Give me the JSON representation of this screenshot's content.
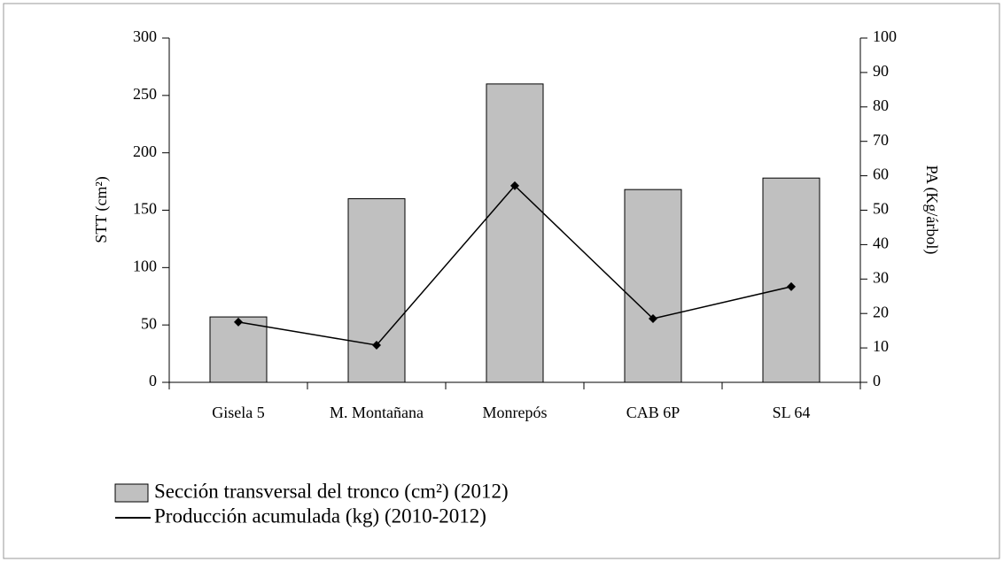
{
  "chart_data": {
    "type": "bar",
    "categories": [
      "Gisela 5",
      "M. Montañana",
      "Monrepós",
      "CAB 6P",
      "SL 64"
    ],
    "series": [
      {
        "name": "Sección transversal del tronco (cm²) (2012)",
        "type": "bar",
        "color": "#c0c0c0",
        "values": [
          57,
          160,
          260,
          168,
          178
        ]
      },
      {
        "name": "Producción acumulada (kg) (2010-2012)",
        "type": "line",
        "color": "#000000",
        "axis": "y2",
        "values": [
          17.5,
          10.8,
          57.1,
          18.5,
          27.8
        ]
      }
    ],
    "ylabel": "STT (cm²)",
    "y2label": "PA (Kg/árbol)",
    "ylim": [
      0,
      300
    ],
    "yticks": [
      0,
      50,
      100,
      150,
      200,
      250,
      300
    ],
    "y2lim": [
      0,
      100
    ],
    "y2ticks": [
      0,
      10,
      20,
      30,
      40,
      50,
      60,
      70,
      80,
      90,
      100
    ],
    "legend": "bottom-left"
  }
}
